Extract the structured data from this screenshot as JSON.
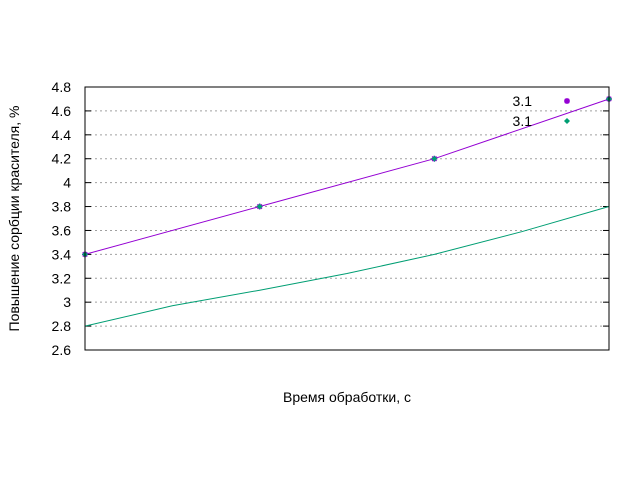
{
  "chart_data": {
    "type": "line",
    "title": "",
    "xlabel": "Время обработки, с",
    "ylabel": "Повышение сорбции красителя, %",
    "xlim": [
      0,
      3
    ],
    "ylim": [
      2.6,
      4.8
    ],
    "yticks": [
      "2.6",
      "2.8",
      "3",
      "3.2",
      "3.4",
      "3.6",
      "3.8",
      "4",
      "4.2",
      "4.4",
      "4.6",
      "4.8"
    ],
    "grid": "horizontal dotted",
    "legend_position": "top-right",
    "series": [
      {
        "name": "3.1",
        "color": "#9400d3",
        "style": "line+points",
        "x": [
          0,
          1,
          2,
          3
        ],
        "y": [
          3.4,
          3.8,
          4.2,
          4.7
        ],
        "points_x": [
          0,
          1,
          2,
          3
        ],
        "points_y": [
          3.4,
          3.8,
          4.2,
          4.7
        ]
      },
      {
        "name": "3.1",
        "color": "#009e73",
        "style": "line",
        "x": [
          0,
          0.5,
          1,
          1.5,
          2,
          2.5,
          3
        ],
        "y": [
          2.8,
          2.97,
          3.1,
          3.24,
          3.4,
          3.59,
          3.8
        ],
        "points_x": [
          0,
          1,
          2,
          3
        ],
        "points_y": [
          3.4,
          3.8,
          4.2,
          4.7
        ]
      }
    ]
  }
}
